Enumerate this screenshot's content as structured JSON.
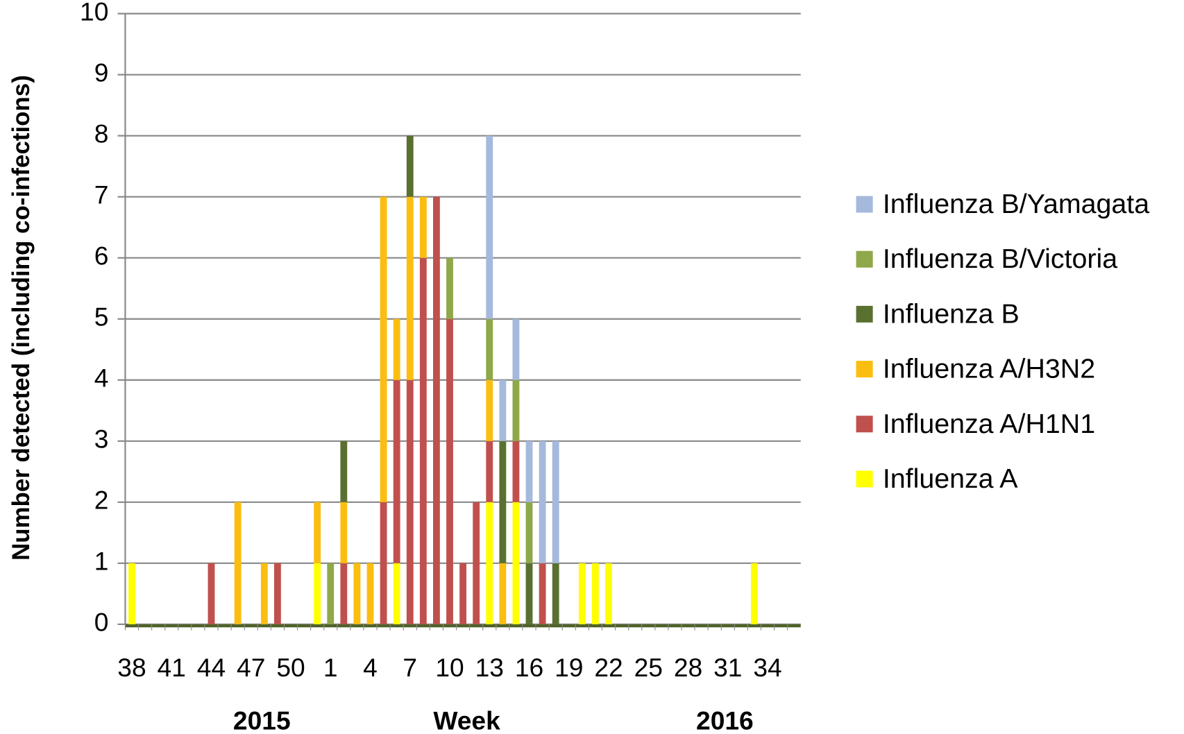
{
  "chart_data": {
    "type": "stacked_bar",
    "ylabel": "Number detected (including co-infections)",
    "xlabel": "Week",
    "annotations": [
      "2015",
      "2016"
    ],
    "categories": [
      "38",
      null,
      null,
      "41",
      null,
      null,
      "44",
      null,
      null,
      "47",
      null,
      null,
      "50",
      null,
      null,
      "1",
      null,
      null,
      "4",
      null,
      null,
      "7",
      null,
      null,
      "10",
      null,
      null,
      "13",
      null,
      null,
      "16",
      null,
      null,
      "19",
      null,
      null,
      "22",
      null,
      null,
      "25",
      null,
      null,
      "28",
      null,
      null,
      "31",
      null,
      null,
      "34",
      null,
      null
    ],
    "series": [
      {
        "name": "Influenza A",
        "color": "#ffff00",
        "values": [
          1,
          0,
          0,
          0,
          0,
          0,
          0,
          0,
          0,
          0,
          0,
          0,
          0,
          0,
          1,
          0,
          0,
          0,
          0,
          0,
          1,
          0,
          0,
          0,
          0,
          0,
          0,
          2,
          0,
          2,
          0,
          0,
          0,
          0,
          1,
          1,
          1,
          0,
          0,
          0,
          0,
          0,
          0,
          0,
          0,
          0,
          0,
          1,
          0,
          0,
          0
        ]
      },
      {
        "name": "Influenza A/H1N1",
        "color": "#c0504d",
        "values": [
          0,
          0,
          0,
          0,
          0,
          0,
          1,
          0,
          0,
          0,
          0,
          1,
          0,
          0,
          0,
          0,
          1,
          0,
          0,
          2,
          3,
          4,
          6,
          7,
          5,
          1,
          2,
          1,
          0,
          1,
          0,
          1,
          0,
          0,
          0,
          0,
          0,
          0,
          0,
          0,
          0,
          0,
          0,
          0,
          0,
          0,
          0,
          0,
          0,
          0,
          0
        ]
      },
      {
        "name": "Influenza A/H3N2",
        "color": "#fbbe10",
        "values": [
          0,
          0,
          0,
          0,
          0,
          0,
          0,
          0,
          2,
          0,
          1,
          0,
          0,
          0,
          1,
          0,
          1,
          1,
          1,
          5,
          1,
          3,
          1,
          0,
          0,
          0,
          0,
          1,
          1,
          0,
          0,
          0,
          0,
          0,
          0,
          0,
          0,
          0,
          0,
          0,
          0,
          0,
          0,
          0,
          0,
          0,
          0,
          0,
          0,
          0,
          0
        ]
      },
      {
        "name": "Influenza B",
        "color": "#5a7030",
        "values": [
          0,
          0,
          0,
          0,
          0,
          0,
          0,
          0,
          0,
          0,
          0,
          0,
          0,
          0,
          0,
          0,
          1,
          0,
          0,
          0,
          0,
          1,
          0,
          0,
          0,
          0,
          0,
          0,
          2,
          0,
          1,
          0,
          1,
          0,
          0,
          0,
          0,
          0,
          0,
          0,
          0,
          0,
          0,
          0,
          0,
          0,
          0,
          0,
          0,
          0,
          0
        ]
      },
      {
        "name": "Influenza B/Victoria",
        "color": "#8ea84a",
        "values": [
          0,
          0,
          0,
          0,
          0,
          0,
          0,
          0,
          0,
          0,
          0,
          0,
          0,
          0,
          0,
          1,
          0,
          0,
          0,
          0,
          0,
          0,
          0,
          0,
          1,
          0,
          0,
          1,
          0,
          1,
          1,
          0,
          0,
          0,
          0,
          0,
          0,
          0,
          0,
          0,
          0,
          0,
          0,
          0,
          0,
          0,
          0,
          0,
          0,
          0,
          0
        ]
      },
      {
        "name": "Influenza B/Yamagata",
        "color": "#a5b9dc",
        "values": [
          0,
          0,
          0,
          0,
          0,
          0,
          0,
          0,
          0,
          0,
          0,
          0,
          0,
          0,
          0,
          0,
          0,
          0,
          0,
          0,
          0,
          0,
          0,
          0,
          0,
          0,
          0,
          3,
          1,
          1,
          1,
          2,
          2,
          0,
          0,
          0,
          0,
          0,
          0,
          0,
          0,
          0,
          0,
          0,
          0,
          0,
          0,
          0,
          0,
          0,
          0
        ]
      }
    ],
    "ylim": [
      0,
      10
    ],
    "yticks": [
      0,
      1,
      2,
      3,
      4,
      5,
      6,
      7,
      8,
      9,
      10
    ],
    "grid": true,
    "legend": "right"
  }
}
